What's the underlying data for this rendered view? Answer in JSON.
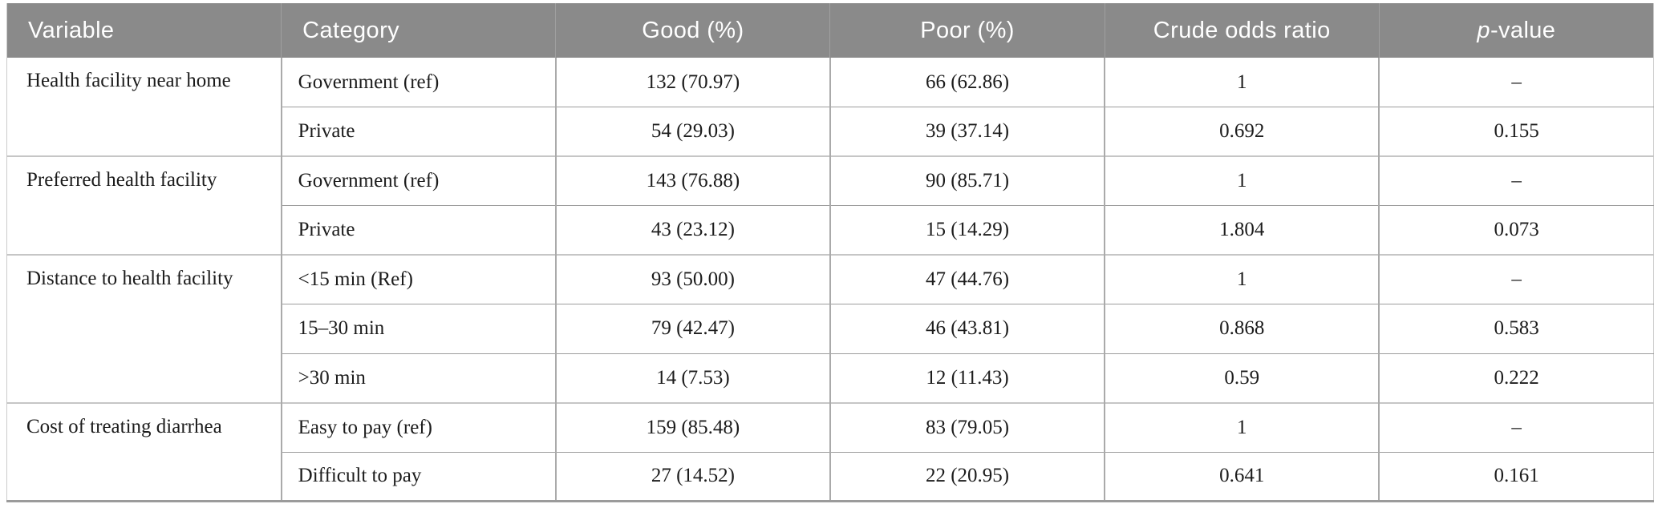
{
  "colors": {
    "header_bg": "#8a8a8a",
    "header_text": "#ffffff",
    "header_divider": "#a0a0a0",
    "body_text": "#1c1c1c",
    "col_divider": "#aaaaaa",
    "row_divider": "#9c9c9c",
    "group_divider": "#c6c6c6",
    "outer_border": "#cccccc",
    "bottom_border": "#9b9b9b"
  },
  "table": {
    "headers": [
      "Variable",
      "Category",
      "Good (%)",
      "Poor (%)",
      "Crude odds ratio",
      "p-value"
    ],
    "p_header": {
      "italic": "p",
      "rest": "-value"
    },
    "groups": [
      {
        "variable": "Health facility near home",
        "rows": [
          {
            "category": "Government (ref)",
            "good": "132 (70.97)",
            "poor": "66 (62.86)",
            "cor": "1",
            "p": "–"
          },
          {
            "category": "Private",
            "good": "54 (29.03)",
            "poor": "39 (37.14)",
            "cor": "0.692",
            "p": "0.155"
          }
        ]
      },
      {
        "variable": "Preferred health facility",
        "rows": [
          {
            "category": "Government (ref)",
            "good": "143 (76.88)",
            "poor": "90 (85.71)",
            "cor": "1",
            "p": "–"
          },
          {
            "category": "Private",
            "good": "43 (23.12)",
            "poor": "15 (14.29)",
            "cor": "1.804",
            "p": "0.073"
          }
        ]
      },
      {
        "variable": "Distance to health facility",
        "rows": [
          {
            "category": "<15 min (Ref)",
            "good": "93 (50.00)",
            "poor": "47 (44.76)",
            "cor": "1",
            "p": "–"
          },
          {
            "category": "15–30 min",
            "good": "79 (42.47)",
            "poor": "46 (43.81)",
            "cor": "0.868",
            "p": "0.583"
          },
          {
            "category": ">30 min",
            "good": "14 (7.53)",
            "poor": "12 (11.43)",
            "cor": "0.59",
            "p": "0.222"
          }
        ]
      },
      {
        "variable": "Cost of treating diarrhea",
        "rows": [
          {
            "category": "Easy to pay (ref)",
            "good": "159 (85.48)",
            "poor": "83 (79.05)",
            "cor": "1",
            "p": "–"
          },
          {
            "category": "Difficult to pay",
            "good": "27 (14.52)",
            "poor": "22 (20.95)",
            "cor": "0.641",
            "p": "0.161"
          }
        ]
      }
    ]
  }
}
